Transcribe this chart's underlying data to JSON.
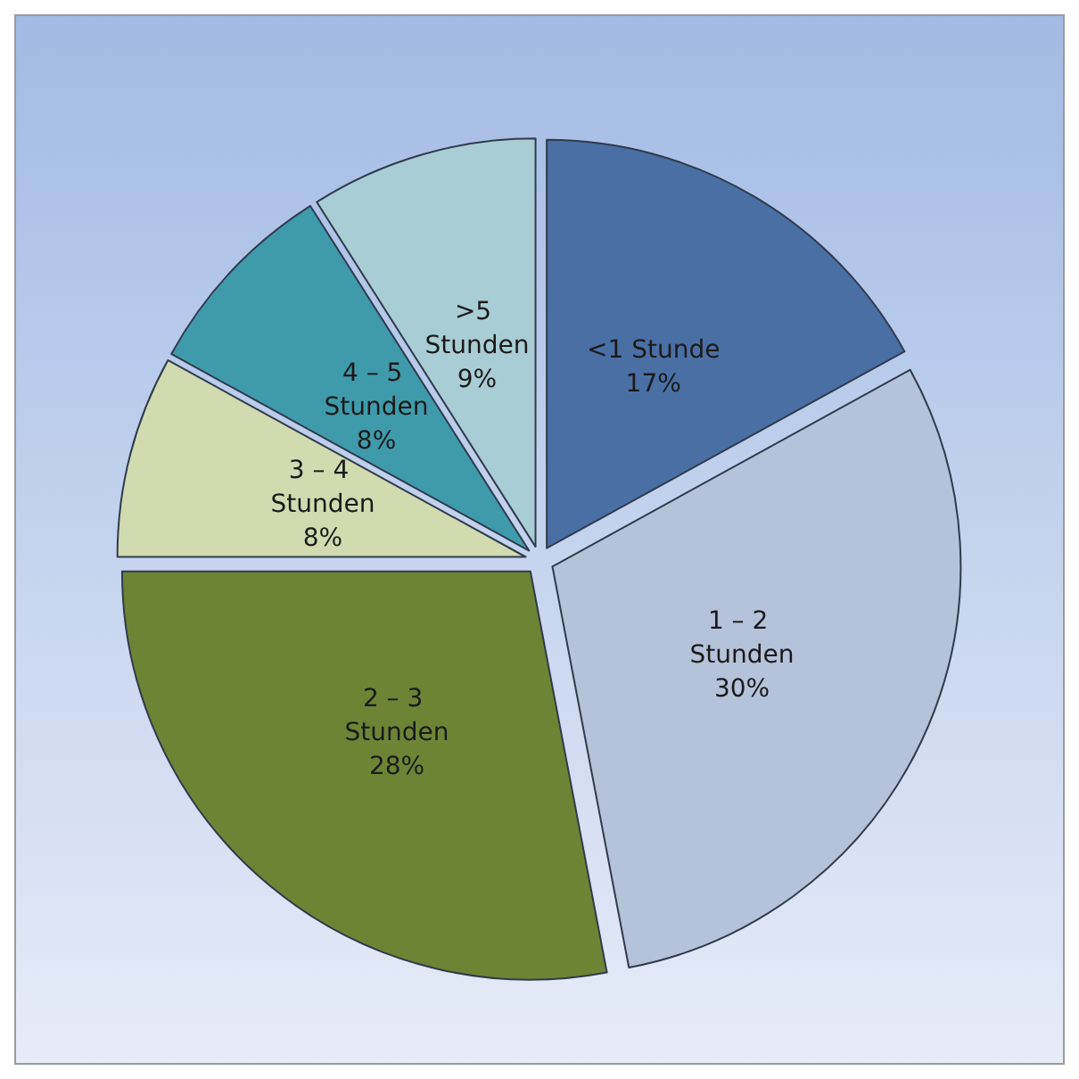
{
  "chart_data": {
    "type": "pie",
    "categories": [
      "<1 Stunde",
      "1 – 2 Stunden",
      "2 – 3 Stunden",
      "3 – 4 Stunden",
      "4 – 5 Stunden",
      ">5 Stunden"
    ],
    "values": [
      17,
      30,
      28,
      8,
      8,
      9
    ],
    "value_labels": [
      "17%",
      "30%",
      "28%",
      "8%",
      "8%",
      "9%"
    ],
    "colors": [
      "#4a6fa5",
      "#b4c3da",
      "#6c8534",
      "#d2dbb0",
      "#3f9bab",
      "#a9cdd5"
    ],
    "legend": false
  }
}
